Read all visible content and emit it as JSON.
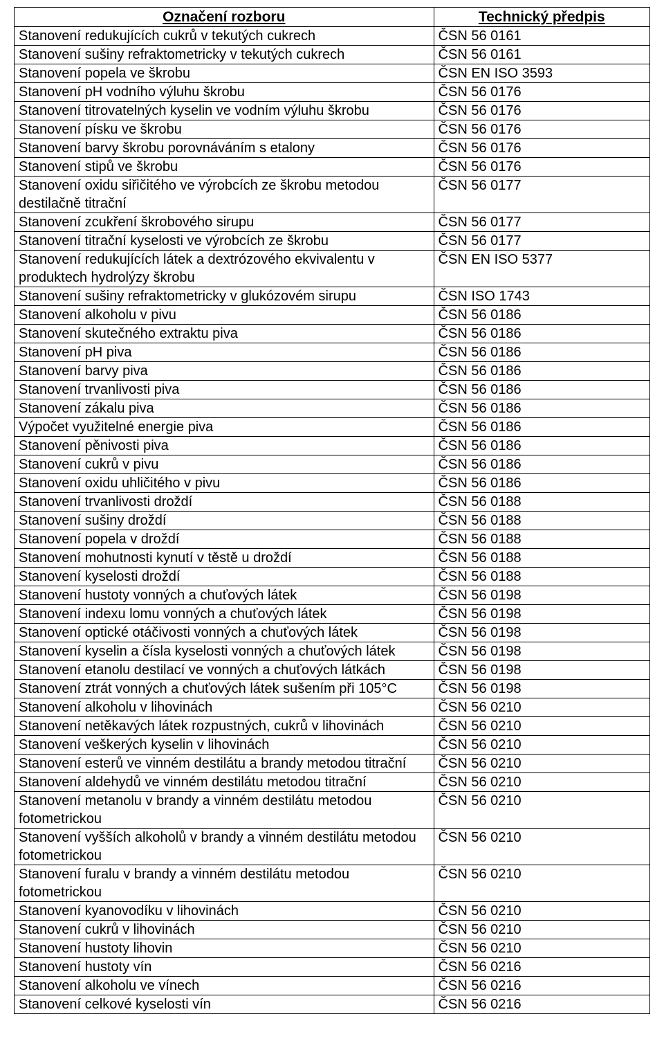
{
  "table": {
    "headers": {
      "name": "Označení rozboru",
      "spec": "Technický předpis"
    },
    "rows": [
      {
        "name": "Stanovení redukujících cukrů v tekutých cukrech",
        "spec": "ČSN 56 0161"
      },
      {
        "name": "Stanovení sušiny refraktometricky v tekutých cukrech",
        "spec": "ČSN 56 0161"
      },
      {
        "name": "Stanovení popela ve škrobu",
        "spec": "ČSN EN ISO 3593"
      },
      {
        "name": "Stanovení pH vodního výluhu škrobu",
        "spec": "ČSN 56 0176"
      },
      {
        "name": "Stanovení titrovatelných kyselin ve vodním výluhu škrobu",
        "spec": "ČSN 56 0176"
      },
      {
        "name": "Stanovení písku ve škrobu",
        "spec": "ČSN 56 0176"
      },
      {
        "name": "Stanovení barvy škrobu porovnáváním s etalony",
        "spec": "ČSN 56 0176"
      },
      {
        "name": "Stanovení stipů ve škrobu",
        "spec": "ČSN 56 0176"
      },
      {
        "name": "Stanovení oxidu siřičitého ve výrobcích ze škrobu metodou destilačně titrační",
        "spec": "ČSN 56 0177"
      },
      {
        "name": "Stanovení zcukření škrobového sirupu",
        "spec": "ČSN 56 0177"
      },
      {
        "name": "Stanovení titrační kyselosti ve výrobcích ze škrobu",
        "spec": "ČSN 56 0177"
      },
      {
        "name": "Stanovení redukujících látek a dextrózového ekvivalentu v produktech hydrolýzy škrobu",
        "spec": "ČSN EN ISO 5377"
      },
      {
        "name": "Stanovení sušiny refraktometricky v glukózovém sirupu",
        "spec": "ČSN ISO 1743"
      },
      {
        "name": "Stanovení alkoholu v pivu",
        "spec": "ČSN 56 0186"
      },
      {
        "name": "Stanovení skutečného extraktu piva",
        "spec": "ČSN 56 0186"
      },
      {
        "name": "Stanovení pH piva",
        "spec": "ČSN 56 0186"
      },
      {
        "name": "Stanovení barvy piva",
        "spec": "ČSN 56 0186"
      },
      {
        "name": "Stanovení trvanlivosti piva",
        "spec": "ČSN 56 0186"
      },
      {
        "name": "Stanovení zákalu piva",
        "spec": "ČSN 56 0186"
      },
      {
        "name": "Výpočet využitelné energie piva",
        "spec": "ČSN 56 0186"
      },
      {
        "name": "Stanovení pěnivosti piva",
        "spec": "ČSN 56 0186"
      },
      {
        "name": "Stanovení cukrů v pivu",
        "spec": "ČSN 56 0186"
      },
      {
        "name": "Stanovení oxidu uhličitého v pivu",
        "spec": "ČSN 56 0186"
      },
      {
        "name": "Stanovení trvanlivosti droždí",
        "spec": "ČSN 56 0188"
      },
      {
        "name": "Stanovení sušiny droždí",
        "spec": "ČSN 56 0188"
      },
      {
        "name": "Stanovení popela v droždí",
        "spec": "ČSN 56 0188"
      },
      {
        "name": "Stanovení mohutnosti kynutí v těstě u droždí",
        "spec": "ČSN 56 0188"
      },
      {
        "name": "Stanovení kyselosti droždí",
        "spec": "ČSN 56 0188"
      },
      {
        "name": "Stanovení hustoty vonných a chuťových látek",
        "spec": "ČSN 56 0198"
      },
      {
        "name": "Stanovení indexu lomu vonných a chuťových látek",
        "spec": "ČSN 56 0198"
      },
      {
        "name": "Stanovení optické otáčivosti vonných a chuťových látek",
        "spec": "ČSN 56 0198"
      },
      {
        "name": "Stanovení kyselin a čísla kyselosti vonných a chuťových látek",
        "spec": "ČSN 56 0198"
      },
      {
        "name": "Stanovení etanolu destilací ve vonných a chuťových látkách",
        "spec": "ČSN 56 0198"
      },
      {
        "name": "Stanovení ztrát vonných a chuťových látek sušením při 105°C",
        "spec": "ČSN 56 0198"
      },
      {
        "name": "Stanovení alkoholu v lihovinách",
        "spec": "ČSN 56 0210"
      },
      {
        "name": "Stanovení netěkavých látek rozpustných, cukrů v lihovinách",
        "spec": "ČSN 56 0210"
      },
      {
        "name": "Stanovení veškerých kyselin v lihovinách",
        "spec": "ČSN 56 0210"
      },
      {
        "name": "Stanovení esterů ve vinném destilátu a brandy metodou titrační",
        "spec": "ČSN 56 0210"
      },
      {
        "name": "Stanovení aldehydů ve vinném destilátu metodou titrační",
        "spec": "ČSN 56 0210"
      },
      {
        "name": "Stanovení metanolu v brandy a vinném destilátu metodou fotometrickou",
        "spec": "ČSN 56 0210"
      },
      {
        "name": "Stanovení vyšších alkoholů v brandy a vinném destilátu metodou fotometrickou",
        "spec": "ČSN 56 0210"
      },
      {
        "name": "Stanovení furalu v brandy a vinném destilátu metodou fotometrickou",
        "spec": "ČSN 56 0210"
      },
      {
        "name": "Stanovení kyanovodíku v lihovinách",
        "spec": "ČSN 56 0210"
      },
      {
        "name": "Stanovení cukrů v lihovinách",
        "spec": "ČSN 56 0210"
      },
      {
        "name": "Stanovení hustoty lihovin",
        "spec": "ČSN 56 0210"
      },
      {
        "name": "Stanovení hustoty vín",
        "spec": "ČSN 56 0216"
      },
      {
        "name": "Stanovení alkoholu ve vínech",
        "spec": "ČSN 56 0216"
      },
      {
        "name": "Stanovení celkové kyselosti vín",
        "spec": "ČSN 56 0216"
      }
    ]
  }
}
